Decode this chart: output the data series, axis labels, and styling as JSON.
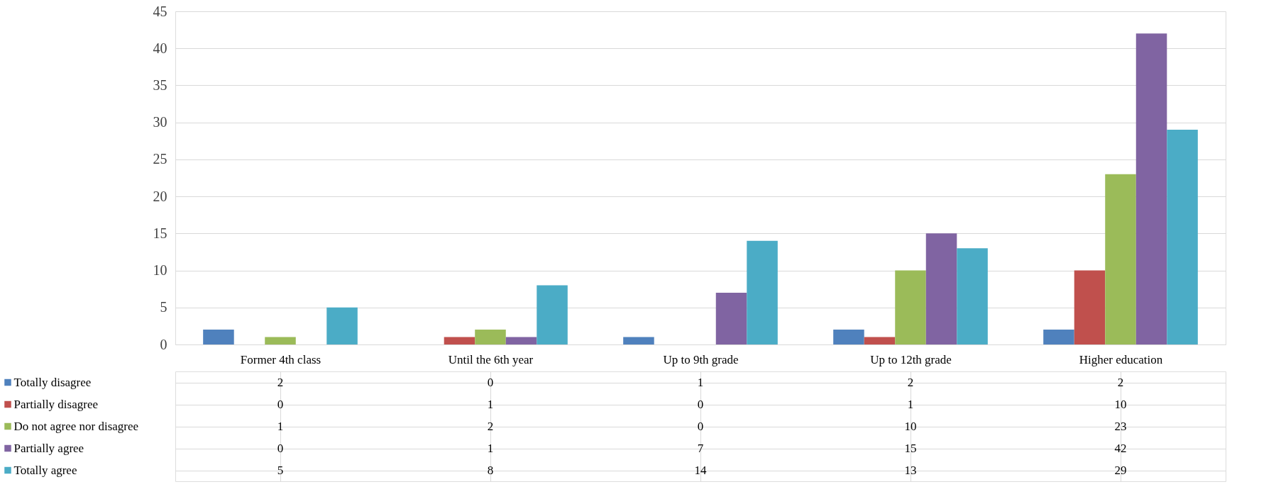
{
  "chart_data": {
    "type": "bar",
    "categories": [
      "Former 4th class",
      "Until the 6th year",
      "Up to 9th grade",
      "Up to 12th grade",
      "Higher education"
    ],
    "series": [
      {
        "name": "Totally disagree",
        "color": "#4f81bd",
        "values": [
          2,
          0,
          1,
          2,
          2
        ]
      },
      {
        "name": "Partially disagree",
        "color": "#c0504d",
        "values": [
          0,
          1,
          0,
          1,
          10
        ]
      },
      {
        "name": "Do not agree nor disagree",
        "color": "#9bbb59",
        "values": [
          1,
          2,
          0,
          10,
          23
        ]
      },
      {
        "name": "Partially agree",
        "color": "#8064a2",
        "values": [
          0,
          1,
          7,
          15,
          42
        ]
      },
      {
        "name": "Totally agree",
        "color": "#4bacc6",
        "values": [
          5,
          8,
          14,
          13,
          29
        ]
      }
    ],
    "ylim": [
      0,
      45
    ],
    "yticks": [
      0,
      5,
      10,
      15,
      20,
      25,
      30,
      35,
      40,
      45
    ],
    "grid": "y",
    "legend": "bottom",
    "data_labels": true
  }
}
